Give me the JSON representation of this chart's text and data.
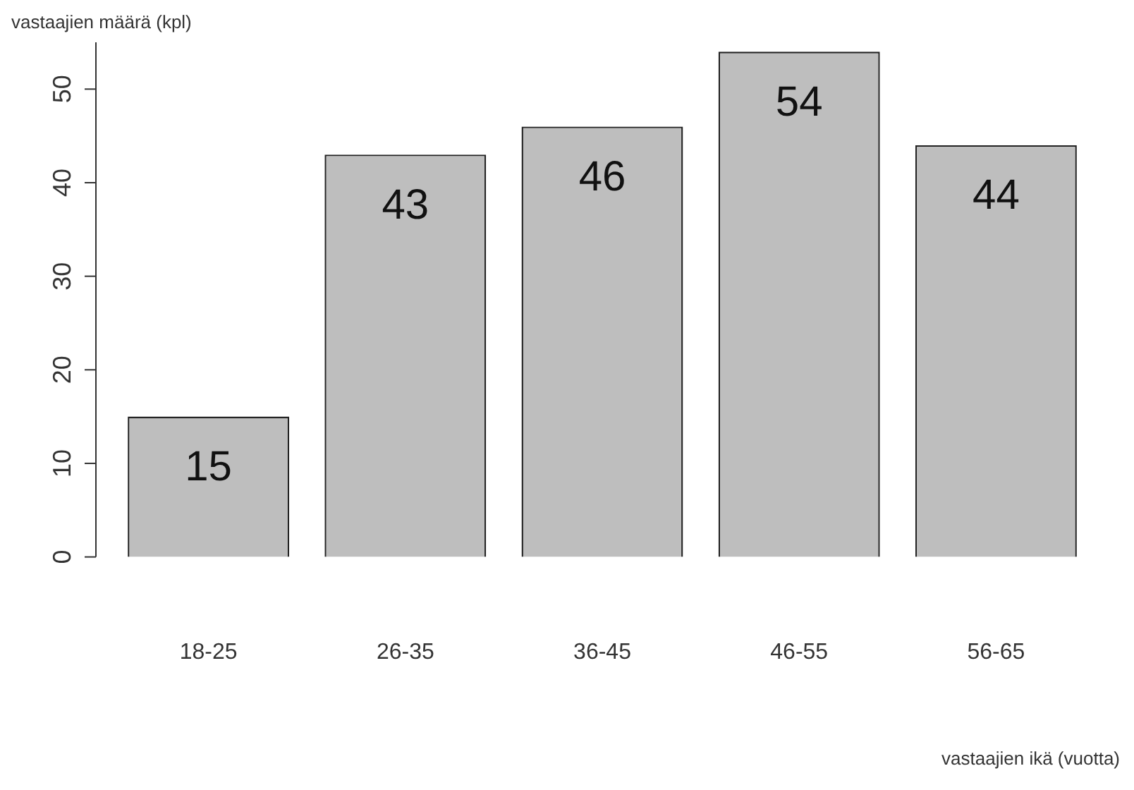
{
  "chart_data": {
    "type": "bar",
    "ylabel": "vastaajien määrä (kpl)",
    "xlabel": "vastaajien ikä (vuotta)",
    "categories": [
      "18-25",
      "26-35",
      "36-45",
      "46-55",
      "56-65"
    ],
    "values": [
      15,
      43,
      46,
      54,
      44
    ],
    "color": "#bebebe",
    "ylim": [
      0,
      55
    ],
    "yticks": [
      0,
      10,
      20,
      30,
      40,
      50
    ],
    "grid": false,
    "legend": false,
    "data_labels": true
  }
}
